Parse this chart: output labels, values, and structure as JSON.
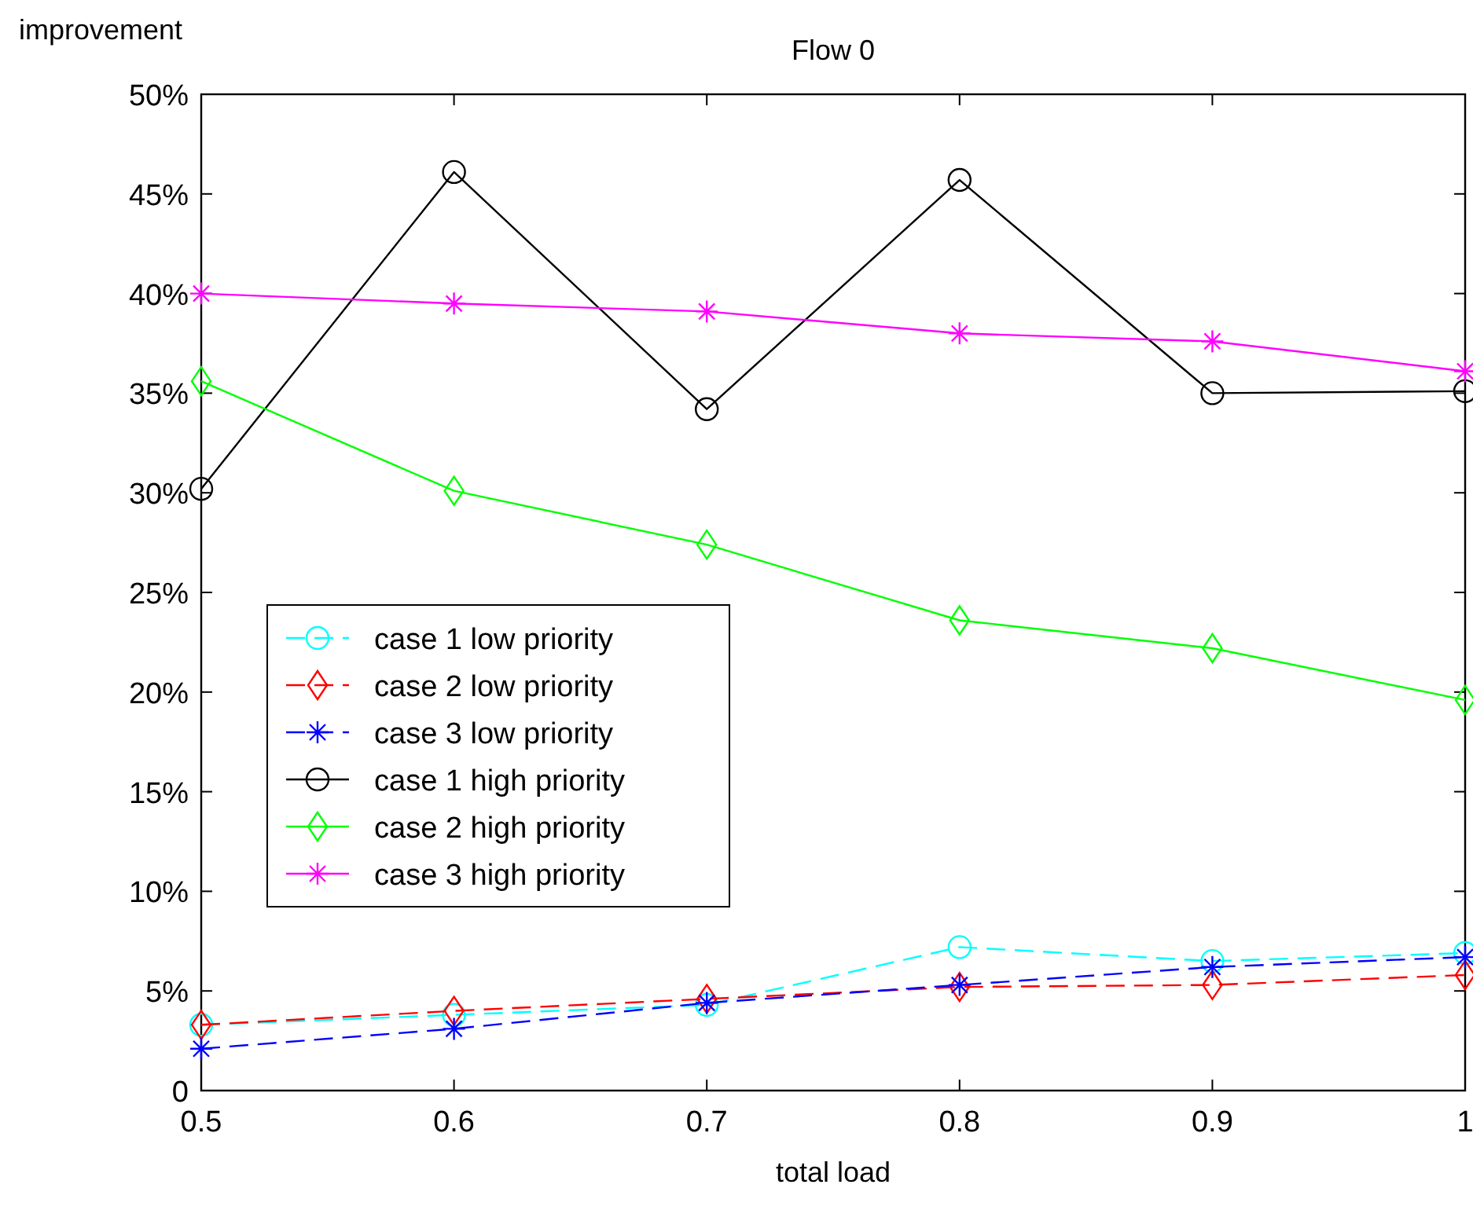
{
  "chart_data": {
    "type": "line",
    "title": "Flow 0",
    "xlabel": "total load",
    "ylabel": "improvement",
    "x": [
      0.5,
      0.6,
      0.7,
      0.8,
      0.9,
      1
    ],
    "xlim": [
      0.5,
      1
    ],
    "xticks": [
      0.5,
      0.6,
      0.7,
      0.8,
      0.9,
      1
    ],
    "ylim": [
      0,
      50
    ],
    "yticks": [
      0,
      {
        "value": 5,
        "label": "5%"
      },
      {
        "value": 10,
        "label": "10%"
      },
      {
        "value": 15,
        "label": "15%"
      },
      {
        "value": 20,
        "label": "20%"
      },
      {
        "value": 25,
        "label": "25%"
      },
      {
        "value": 30,
        "label": "30%"
      },
      {
        "value": 35,
        "label": "35%"
      },
      {
        "value": 40,
        "label": "40%"
      },
      {
        "value": 45,
        "label": "45%"
      },
      {
        "value": 50,
        "label": "50%"
      }
    ],
    "grid": false,
    "legend": "left",
    "series": [
      {
        "name": "case 1 low priority",
        "color": "#00ffff",
        "marker": "circle",
        "line_style": "dashed",
        "values": [
          3.3,
          3.8,
          4.3,
          7.2,
          6.5,
          6.9
        ]
      },
      {
        "name": "case 2 low priority",
        "color": "#ff0000",
        "marker": "diamond",
        "line_style": "dashed",
        "values": [
          3.3,
          4.0,
          4.6,
          5.2,
          5.3,
          5.8
        ]
      },
      {
        "name": "case 3 low priority",
        "color": "#0000ff",
        "marker": "cross",
        "line_style": "dashed",
        "values": [
          2.1,
          3.1,
          4.4,
          5.3,
          6.2,
          6.7
        ]
      },
      {
        "name": "case 1 high priority",
        "color": "#000000",
        "marker": "circle",
        "line_style": "solid",
        "values": [
          30.2,
          46.1,
          34.2,
          45.7,
          35.0,
          35.1
        ]
      },
      {
        "name": "case 2 high priority",
        "color": "#00ff00",
        "marker": "diamond",
        "line_style": "solid",
        "values": [
          35.6,
          30.1,
          27.4,
          23.6,
          22.2,
          19.6
        ]
      },
      {
        "name": "case 3 high priority",
        "color": "#ff00ff",
        "marker": "cross",
        "line_style": "solid",
        "values": [
          40.0,
          39.5,
          39.1,
          38.0,
          37.6,
          36.1
        ]
      }
    ]
  }
}
